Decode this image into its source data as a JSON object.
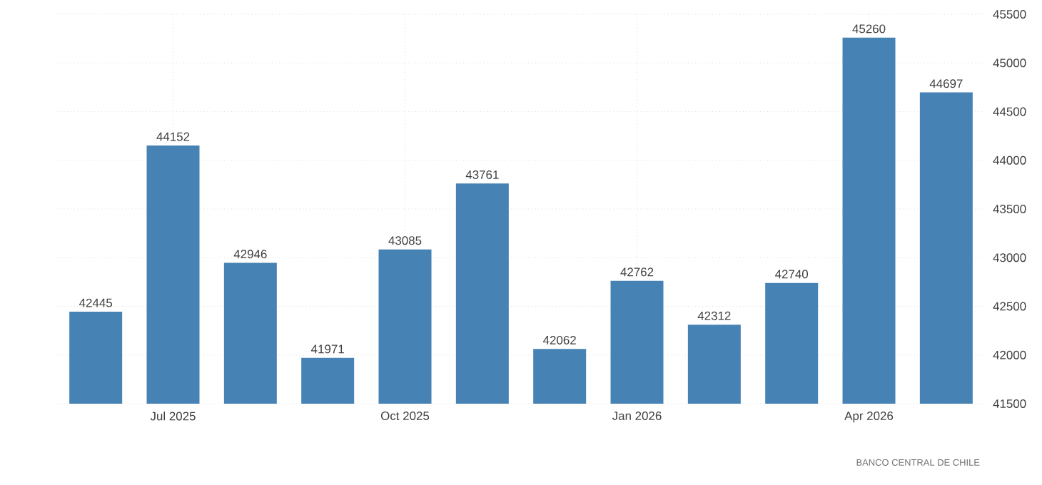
{
  "chart_data": {
    "type": "bar",
    "categories": [
      null,
      "Jul 2025",
      null,
      null,
      "Oct 2025",
      null,
      null,
      "Jan 2026",
      null,
      null,
      "Apr 2026",
      null
    ],
    "values": [
      42445,
      44152,
      42946,
      41971,
      43085,
      43761,
      42062,
      42762,
      42312,
      42740,
      45260,
      44697
    ],
    "color": "#4682b4",
    "ylim": [
      41500,
      45500
    ],
    "yticks": [
      41500,
      42000,
      42500,
      43000,
      43500,
      44000,
      44500,
      45000,
      45500
    ],
    "grid": true,
    "data_labels": true,
    "annotations": [
      "BANCO CENTRAL DE CHILE"
    ]
  }
}
